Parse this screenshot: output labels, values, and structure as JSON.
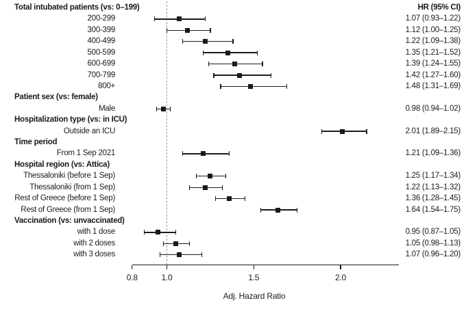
{
  "colors": {
    "ink": "#1a1a1a",
    "reference_line": "#9a9a9a",
    "background": "#ffffff"
  },
  "chart_data": {
    "type": "scatter",
    "subtype": "forest-plot",
    "title": "",
    "xlabel": "Adj. Hazard Ratio",
    "ylabel": "",
    "value_column_header": "HR (95% CI)",
    "xlim": [
      0.8,
      2.33
    ],
    "x_scale": "linear",
    "grid": false,
    "reference_x": 1.0,
    "x_ticks": [
      0.8,
      1.0,
      1.5,
      2.0
    ],
    "x_tick_labels": [
      "0.8",
      "1.0",
      "1.5",
      "2.0"
    ],
    "rows": [
      {
        "type": "header",
        "label": "Total intubated patients (vs: 0–199)"
      },
      {
        "type": "item",
        "label": "200-299",
        "hr": 1.07,
        "ci_low": 0.93,
        "ci_high": 1.22,
        "display": "1.07 (0.93–1.22)"
      },
      {
        "type": "item",
        "label": "300-399",
        "hr": 1.12,
        "ci_low": 1.0,
        "ci_high": 1.25,
        "display": "1.12 (1.00–1.25)"
      },
      {
        "type": "item",
        "label": "400-499",
        "hr": 1.22,
        "ci_low": 1.09,
        "ci_high": 1.38,
        "display": "1.22 (1.09–1.38)"
      },
      {
        "type": "item",
        "label": "500-599",
        "hr": 1.35,
        "ci_low": 1.21,
        "ci_high": 1.52,
        "display": "1.35 (1.21–1.52)"
      },
      {
        "type": "item",
        "label": "600-699",
        "hr": 1.39,
        "ci_low": 1.24,
        "ci_high": 1.55,
        "display": "1.39 (1.24–1.55)"
      },
      {
        "type": "item",
        "label": "700-799",
        "hr": 1.42,
        "ci_low": 1.27,
        "ci_high": 1.6,
        "display": "1.42 (1.27–1.60)"
      },
      {
        "type": "item",
        "label": "800+",
        "hr": 1.48,
        "ci_low": 1.31,
        "ci_high": 1.69,
        "display": "1.48 (1.31–1.69)"
      },
      {
        "type": "header",
        "label": "Patient sex (vs: female)"
      },
      {
        "type": "item",
        "label": "Male",
        "hr": 0.98,
        "ci_low": 0.94,
        "ci_high": 1.02,
        "display": "0.98 (0.94–1.02)"
      },
      {
        "type": "header",
        "label": "Hospitalization type (vs: in ICU)"
      },
      {
        "type": "item",
        "label": "Outside an ICU",
        "hr": 2.01,
        "ci_low": 1.89,
        "ci_high": 2.15,
        "display": "2.01 (1.89–2.15)"
      },
      {
        "type": "header",
        "label": "Time period"
      },
      {
        "type": "item",
        "label": "From 1 Sep 2021",
        "hr": 1.21,
        "ci_low": 1.09,
        "ci_high": 1.36,
        "display": "1.21 (1.09–1.36)"
      },
      {
        "type": "header",
        "label": "Hospital region (vs: Attica)"
      },
      {
        "type": "item",
        "label": "Thessaloniki (before 1 Sep)",
        "hr": 1.25,
        "ci_low": 1.17,
        "ci_high": 1.34,
        "display": "1.25 (1.17–1.34)"
      },
      {
        "type": "item",
        "label": "Thessaloniki (from 1 Sep)",
        "hr": 1.22,
        "ci_low": 1.13,
        "ci_high": 1.32,
        "display": "1.22 (1.13–1.32)"
      },
      {
        "type": "item",
        "label": "Rest of Greece (before 1 Sep)",
        "hr": 1.36,
        "ci_low": 1.28,
        "ci_high": 1.45,
        "display": "1.36 (1.28–1.45)"
      },
      {
        "type": "item",
        "label": "Rest of Greece (from 1 Sep)",
        "hr": 1.64,
        "ci_low": 1.54,
        "ci_high": 1.75,
        "display": "1.64 (1.54–1.75)"
      },
      {
        "type": "header",
        "label": "Vaccination (vs: unvaccinated)"
      },
      {
        "type": "item",
        "label": "with 1 dose",
        "hr": 0.95,
        "ci_low": 0.87,
        "ci_high": 1.05,
        "display": "0.95 (0.87–1.05)"
      },
      {
        "type": "item",
        "label": "with 2 doses",
        "hr": 1.05,
        "ci_low": 0.98,
        "ci_high": 1.13,
        "display": "1.05 (0.98–1.13)"
      },
      {
        "type": "item",
        "label": "with 3 doses",
        "hr": 1.07,
        "ci_low": 0.96,
        "ci_high": 1.2,
        "display": "1.07 (0.96–1.20)"
      }
    ]
  }
}
